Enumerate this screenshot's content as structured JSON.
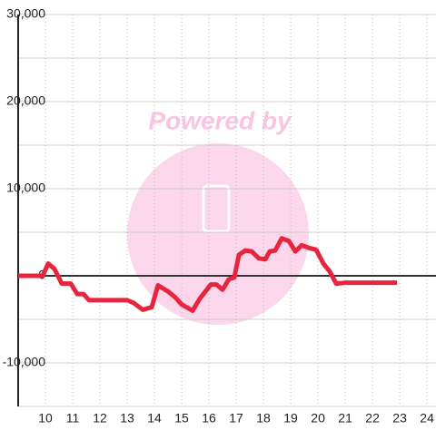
{
  "chart_data": {
    "type": "line",
    "watermark": "Powered by",
    "x": [
      9.0,
      9.9,
      10.1,
      10.33,
      10.6,
      10.93,
      11.17,
      11.4,
      11.6,
      13.0,
      13.23,
      13.57,
      13.9,
      14.13,
      14.5,
      14.77,
      15.0,
      15.4,
      15.67,
      16.07,
      16.27,
      16.5,
      16.73,
      16.93,
      17.1,
      17.33,
      17.57,
      17.83,
      18.07,
      18.23,
      18.43,
      18.67,
      18.93,
      19.17,
      19.4,
      19.67,
      19.93,
      20.2,
      20.43,
      20.67,
      21.0,
      22.9
    ],
    "series": [
      {
        "color": "#e8253e",
        "values": [
          0,
          0,
          1400,
          800,
          -900,
          -900,
          -2100,
          -2100,
          -2800,
          -2800,
          -3100,
          -3900,
          -3600,
          -1100,
          -1800,
          -2500,
          -3300,
          -4000,
          -2600,
          -1000,
          -1000,
          -1600,
          -400,
          -200,
          2400,
          2900,
          2800,
          2000,
          1900,
          2800,
          2900,
          4300,
          4000,
          2800,
          3500,
          3200,
          3000,
          1400,
          500,
          -900,
          -800,
          -800
        ]
      }
    ],
    "xlim": [
      9,
      24.33
    ],
    "xticks": [
      10,
      11,
      12,
      13,
      14,
      15,
      16,
      17,
      18,
      19,
      20,
      21,
      22,
      23,
      24
    ],
    "ylim": [
      -15000,
      30000
    ],
    "yticks": [
      {
        "value": -10000,
        "label": "-10,000"
      },
      0,
      {
        "value": 10000,
        "label": "10,000"
      },
      {
        "value": 20000,
        "label": "20,000"
      },
      {
        "value": 30000,
        "label": "30,000"
      }
    ],
    "yminor": [
      -15000,
      -5000,
      5000,
      15000,
      25000
    ],
    "grid": true
  }
}
